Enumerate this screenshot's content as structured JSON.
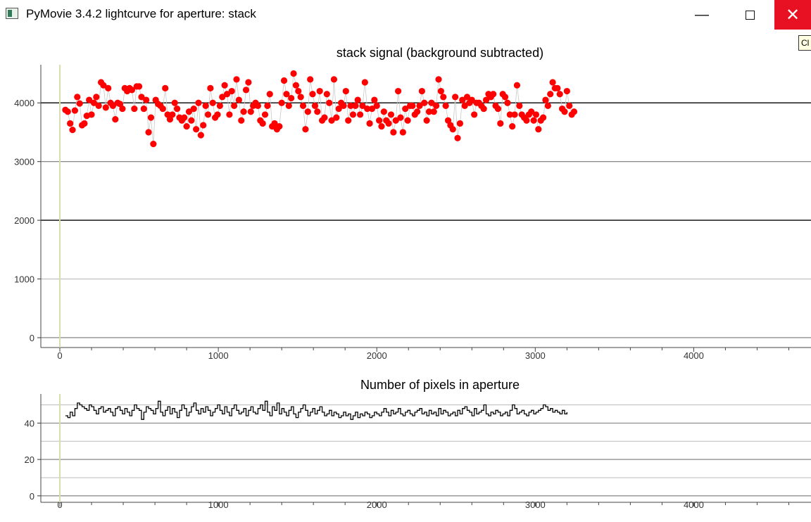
{
  "window": {
    "title": "PyMovie 3.4.2 lightcurve for aperture: stack",
    "minimize_glyph": "—",
    "close_glyph": "✕",
    "tooltip_text": "Cl"
  },
  "colors": {
    "signal_points": "#ff0000",
    "pixel_line": "#000000",
    "vertical_marker": "#d8ddb0",
    "close_button_bg": "#e81123"
  },
  "chart_data": [
    {
      "type": "scatter",
      "title": "stack signal (background subtracted)",
      "xlabel": "",
      "ylabel": "",
      "xlim": [
        -120,
        4740
      ],
      "ylim": [
        -120,
        4650
      ],
      "x_ticks": [
        0,
        1000,
        2000,
        3000,
        4000
      ],
      "y_ticks": [
        0,
        1000,
        2000,
        3000,
        4000
      ],
      "grid": true,
      "marker_x": 0,
      "series": [
        {
          "x_start": 35,
          "x_step": 15,
          "values": [
            3880,
            3850,
            3650,
            3540,
            3870,
            4100,
            3990,
            3620,
            3650,
            3780,
            4050,
            3800,
            4000,
            4100,
            3950,
            4350,
            4300,
            3920,
            4250,
            4000,
            3950,
            3720,
            4000,
            3980,
            3900,
            4250,
            4200,
            4250,
            4220,
            3900,
            4280,
            4280,
            4100,
            3900,
            4050,
            3500,
            3750,
            3300,
            4050,
            3980,
            3950,
            3900,
            4250,
            3800,
            3720,
            3800,
            4000,
            3900,
            3750,
            3700,
            3750,
            3600,
            3850,
            3700,
            3900,
            3550,
            4000,
            3450,
            3620,
            3950,
            3800,
            4250,
            4000,
            3750,
            3800,
            3950,
            4100,
            4300,
            4150,
            3800,
            4200,
            3950,
            4400,
            4050,
            3700,
            3850,
            4220,
            4350,
            3850,
            3950,
            4000,
            3950,
            3700,
            3650,
            3800,
            3950,
            4150,
            3600,
            3650,
            3550,
            3600,
            4000,
            4380,
            4150,
            3950,
            4080,
            4500,
            4300,
            4200,
            4100,
            3950,
            3550,
            3850,
            4400,
            4150,
            3950,
            3850,
            4200,
            3700,
            3750,
            4150,
            4000,
            3700,
            4400,
            3750,
            3900,
            4000,
            3950,
            4200,
            3700,
            3950,
            3800,
            3950,
            4050,
            3800,
            3950,
            4350,
            3900,
            3650,
            3900,
            4050,
            3950,
            3700,
            3600,
            3850,
            3700,
            3650,
            3800,
            3500,
            3700,
            4200,
            3750,
            3500,
            3900,
            3700,
            3950,
            3950,
            3800,
            3850,
            3950,
            4200,
            4000,
            3700,
            3850,
            4000,
            3850,
            3950,
            4400,
            4200,
            4100,
            3950,
            3700,
            3620,
            3550,
            4100,
            3400,
            3650,
            4050,
            3950,
            4100,
            4000,
            4050,
            3800,
            4000,
            4000,
            3950,
            3900,
            4050,
            4150,
            4100,
            4150,
            3950,
            3900,
            3650,
            4150,
            4100,
            4000,
            3800,
            3600,
            3800,
            4300,
            3950,
            3800,
            3750,
            3700,
            3800,
            3850,
            3700,
            3800,
            3550,
            3700,
            3750,
            4050,
            3950,
            4150,
            4350,
            4250,
            4250,
            4150,
            3900,
            3850,
            4200,
            3950,
            3800,
            3850
          ]
        }
      ]
    },
    {
      "type": "line",
      "title": "Number of pixels in aperture",
      "xlabel": "",
      "ylabel": "",
      "xlim": [
        -120,
        4740
      ],
      "ylim": [
        -2,
        56
      ],
      "x_ticks": [
        0,
        1000,
        2000,
        3000,
        4000
      ],
      "y_ticks": [
        0,
        20,
        40
      ],
      "grid": true,
      "marker_x": 0,
      "series": [
        {
          "x_start": 35,
          "x_step": 15,
          "values": [
            44,
            43,
            46,
            44,
            48,
            51,
            50,
            49,
            48,
            47,
            50,
            49,
            47,
            45,
            48,
            49,
            46,
            47,
            48,
            46,
            44,
            48,
            49,
            47,
            45,
            48,
            46,
            44,
            47,
            50,
            48,
            47,
            42,
            46,
            49,
            48,
            47,
            45,
            48,
            52,
            46,
            44,
            47,
            49,
            45,
            48,
            46,
            43,
            47,
            50,
            48,
            44,
            46,
            49,
            51,
            47,
            45,
            48,
            46,
            49,
            47,
            44,
            46,
            48,
            50,
            47,
            45,
            49,
            46,
            44,
            48,
            50,
            47,
            45,
            46,
            48,
            44,
            47,
            49,
            46,
            45,
            48,
            50,
            47,
            52,
            46,
            44,
            49,
            47,
            51,
            45,
            48,
            46,
            44,
            47,
            49,
            45,
            43,
            46,
            48,
            50,
            47,
            44,
            46,
            48,
            45,
            47,
            49,
            46,
            44,
            45,
            47,
            44,
            46,
            45,
            43,
            44,
            46,
            44,
            45,
            42,
            44,
            46,
            43,
            45,
            44,
            46,
            45,
            43,
            44,
            46,
            45,
            44,
            46,
            48,
            46,
            44,
            47,
            45,
            46,
            48,
            45,
            44,
            46,
            47,
            45,
            44,
            46,
            47,
            48,
            45,
            46,
            44,
            47,
            45,
            46,
            44,
            48,
            45,
            47,
            46,
            44,
            45,
            46,
            44,
            47,
            45,
            48,
            49,
            47,
            46,
            44,
            48,
            45,
            46,
            47,
            50,
            45,
            44,
            46,
            45,
            47,
            46,
            44,
            45,
            46,
            44,
            47,
            50,
            48,
            45,
            46,
            47,
            45,
            44,
            46,
            47,
            45,
            46,
            47,
            48,
            50,
            49,
            47,
            48,
            46,
            47,
            46,
            45,
            47,
            45,
            46
          ]
        }
      ]
    }
  ]
}
